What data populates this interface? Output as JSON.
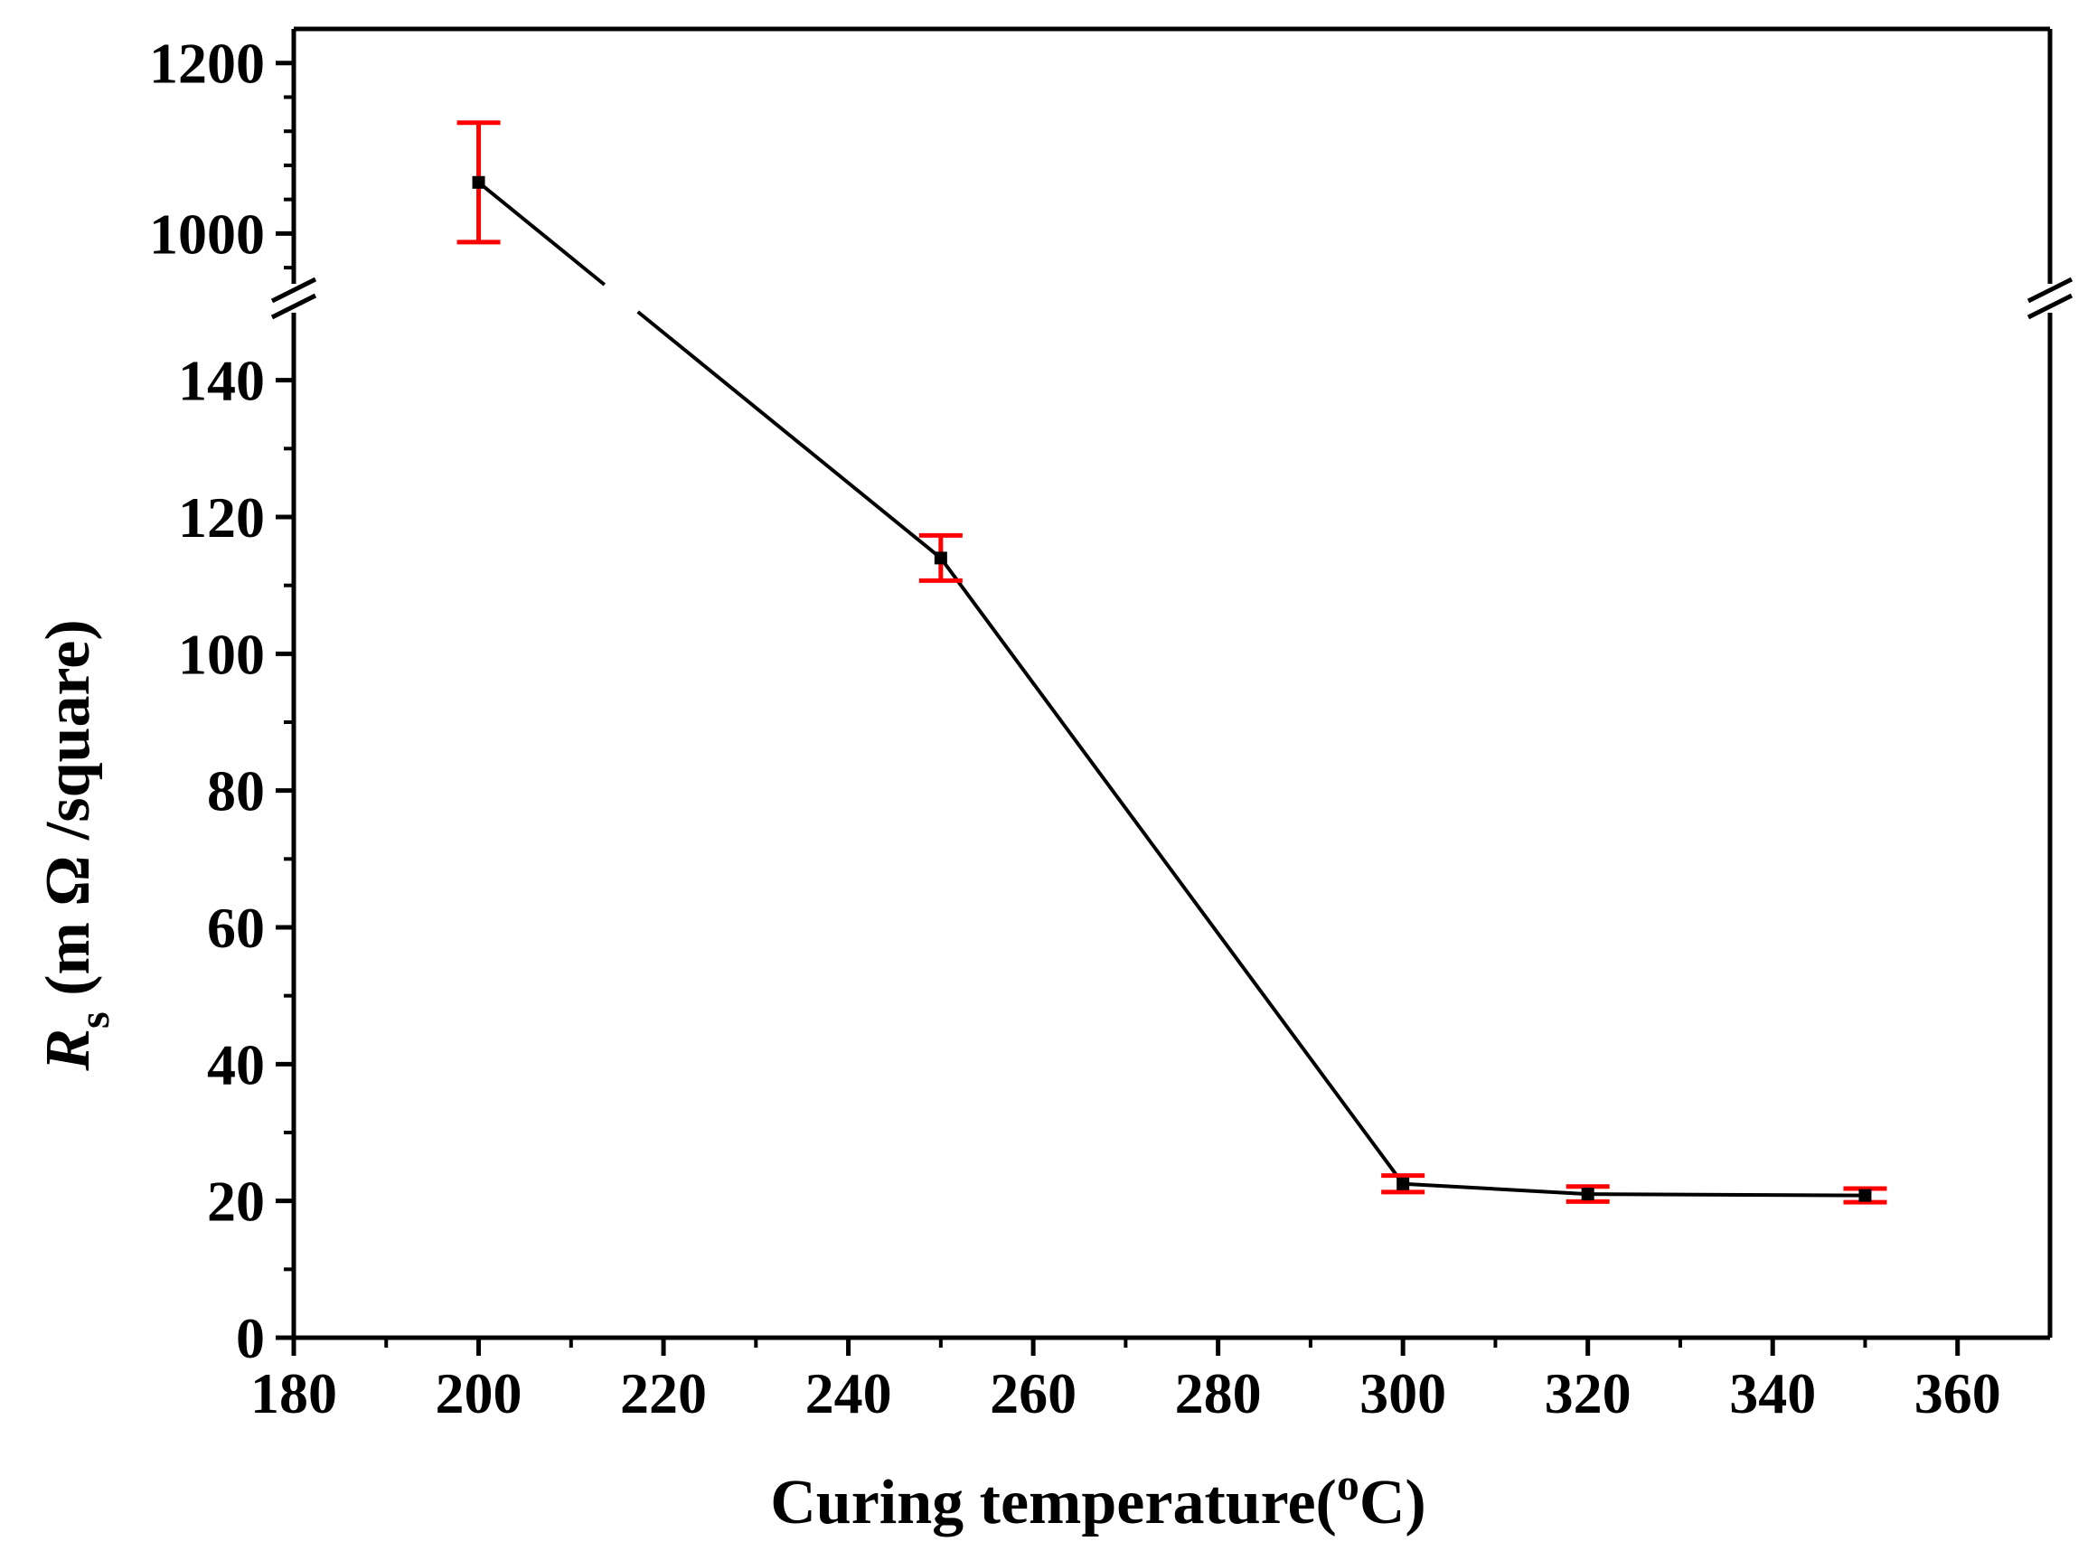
{
  "chart_data": {
    "type": "line",
    "xlabel": "Curing temperature(",
    "xlabel_sup": "o",
    "xlabel_end": "C)",
    "ylabel_var": "R",
    "ylabel_sub": "s",
    "ylabel_rest": " (m Ω /square)",
    "x_ticks": [
      "180",
      "200",
      "220",
      "240",
      "260",
      "280",
      "300",
      "320",
      "340",
      "360"
    ],
    "y_ticks_lower": [
      "0",
      "20",
      "40",
      "60",
      "80",
      "100",
      "120",
      "140"
    ],
    "y_ticks_upper": [
      "1000",
      "1200"
    ],
    "xlim": [
      180,
      370
    ],
    "ylim_lower": [
      0,
      150
    ],
    "ylim_upper": [
      940,
      1240
    ],
    "axis_break": true,
    "grid": false,
    "legend": "none",
    "colors": {
      "line": "#000000",
      "marker": "#000000",
      "error_bar": "#ff0000"
    },
    "series": [
      {
        "x": [
          200,
          250,
          300,
          320,
          350
        ],
        "y": [
          1060,
          114,
          22.5,
          21,
          20.8
        ],
        "error": [
          70,
          3.3,
          1.2,
          1.1,
          1.0
        ]
      }
    ]
  }
}
